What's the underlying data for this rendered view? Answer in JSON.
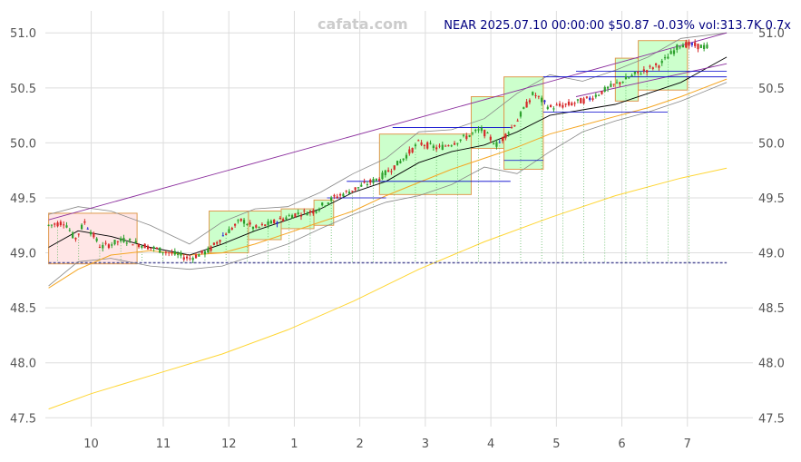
{
  "watermark": "cafata.com",
  "header": {
    "title": "NEAR 2025.07.10 00:00:00 $50.87 -0.03% vol:313.7K 0.7x"
  },
  "colors": {
    "up": "#2ca02c",
    "down": "#d62728",
    "special": "#2b2bd6",
    "ma_short": "#000000",
    "ma_mid": "#f5a623",
    "ma_long": "#ffd633",
    "bollinger": "#888888",
    "channel": "#8b2f9e",
    "box_up_fill": "#ccffcc",
    "box_down_fill": "#ffe6e6",
    "box_border": "#e09a50",
    "level_line": "#0000cc"
  },
  "chart_data": {
    "type": "candlestick",
    "title": "NEAR 2025.07.10 00:00:00 $50.87 -0.03% vol:313.7K 0.7x",
    "x_ticks": [
      "10",
      "11",
      "12",
      "1",
      "2",
      "3",
      "4",
      "5",
      "6",
      "7"
    ],
    "x_tick_positions": [
      1.0,
      2.1,
      3.1,
      4.1,
      5.1,
      6.1,
      7.1,
      8.1,
      9.1,
      10.1
    ],
    "x_range": [
      0.3,
      11.1
    ],
    "y_ticks": [
      47.5,
      48.0,
      48.5,
      49.0,
      49.5,
      50.0,
      50.5,
      51.0
    ],
    "y_tick_labels": [
      "47.5",
      "48.0",
      "48.5",
      "49.0",
      "49.5",
      "50.0",
      "50.5",
      "51.0"
    ],
    "ylim": [
      47.42,
      51.2
    ],
    "grid": true,
    "candles_anchor": [
      [
        0.35,
        49.25
      ],
      [
        0.6,
        49.28
      ],
      [
        0.75,
        49.12
      ],
      [
        0.9,
        49.28
      ],
      [
        1.15,
        49.05
      ],
      [
        1.5,
        49.12
      ],
      [
        1.9,
        49.05
      ],
      [
        2.2,
        49.0
      ],
      [
        2.5,
        48.95
      ],
      [
        2.8,
        49.02
      ],
      [
        3.0,
        49.15
      ],
      [
        3.3,
        49.3
      ],
      [
        3.5,
        49.22
      ],
      [
        3.8,
        49.28
      ],
      [
        4.1,
        49.35
      ],
      [
        4.4,
        49.38
      ],
      [
        4.7,
        49.5
      ],
      [
        5.1,
        49.6
      ],
      [
        5.4,
        49.68
      ],
      [
        5.7,
        49.82
      ],
      [
        6.0,
        50.0
      ],
      [
        6.3,
        49.95
      ],
      [
        6.6,
        50.02
      ],
      [
        6.95,
        50.12
      ],
      [
        7.2,
        49.98
      ],
      [
        7.5,
        50.2
      ],
      [
        7.75,
        50.45
      ],
      [
        8.0,
        50.32
      ],
      [
        8.3,
        50.35
      ],
      [
        8.6,
        50.4
      ],
      [
        8.9,
        50.5
      ],
      [
        9.3,
        50.62
      ],
      [
        9.7,
        50.72
      ],
      [
        10.0,
        50.9
      ],
      [
        10.4,
        50.87
      ]
    ],
    "boxes": [
      {
        "x0": 0.35,
        "x1": 1.7,
        "y0": 48.9,
        "y1": 49.36,
        "dir": "down"
      },
      {
        "x0": 2.8,
        "x1": 3.4,
        "y0": 49.0,
        "y1": 49.38,
        "dir": "up"
      },
      {
        "x0": 3.4,
        "x1": 3.9,
        "y0": 49.12,
        "y1": 49.38,
        "dir": "up"
      },
      {
        "x0": 3.9,
        "x1": 4.4,
        "y0": 49.22,
        "y1": 49.4,
        "dir": "up"
      },
      {
        "x0": 4.4,
        "x1": 4.7,
        "y0": 49.25,
        "y1": 49.48,
        "dir": "up"
      },
      {
        "x0": 5.4,
        "x1": 6.8,
        "y0": 49.53,
        "y1": 50.08,
        "dir": "up"
      },
      {
        "x0": 6.8,
        "x1": 7.3,
        "y0": 49.95,
        "y1": 50.42,
        "dir": "up"
      },
      {
        "x0": 7.3,
        "x1": 7.9,
        "y0": 49.76,
        "y1": 50.6,
        "dir": "up"
      },
      {
        "x0": 9.0,
        "x1": 9.35,
        "y0": 50.38,
        "y1": 50.77,
        "dir": "up"
      },
      {
        "x0": 9.35,
        "x1": 10.1,
        "y0": 50.48,
        "y1": 50.93,
        "dir": "up"
      }
    ],
    "levels": [
      {
        "x0": 4.6,
        "x1": 5.5,
        "y": 49.5
      },
      {
        "x0": 4.9,
        "x1": 7.4,
        "y": 49.65
      },
      {
        "x0": 5.6,
        "x1": 7.4,
        "y": 50.14
      },
      {
        "x0": 7.3,
        "x1": 7.9,
        "y": 49.84
      },
      {
        "x0": 7.9,
        "x1": 9.8,
        "y": 50.28
      },
      {
        "x0": 7.9,
        "x1": 10.7,
        "y": 50.6
      },
      {
        "x0": 8.4,
        "x1": 10.7,
        "y": 50.65
      }
    ],
    "baseline": 48.91,
    "channel_upper": [
      [
        0.35,
        49.3
      ],
      [
        10.7,
        51.0
      ]
    ],
    "channel_lower": [
      [
        8.4,
        50.42
      ],
      [
        10.7,
        50.72
      ]
    ],
    "ma_short": [
      [
        0.35,
        49.05
      ],
      [
        0.8,
        49.2
      ],
      [
        1.3,
        49.15
      ],
      [
        1.9,
        49.05
      ],
      [
        2.5,
        48.98
      ],
      [
        3.0,
        49.08
      ],
      [
        3.5,
        49.2
      ],
      [
        4.0,
        49.3
      ],
      [
        4.5,
        49.4
      ],
      [
        5.0,
        49.55
      ],
      [
        5.5,
        49.65
      ],
      [
        6.0,
        49.82
      ],
      [
        6.5,
        49.92
      ],
      [
        7.0,
        49.98
      ],
      [
        7.5,
        50.1
      ],
      [
        8.0,
        50.25
      ],
      [
        8.5,
        50.3
      ],
      [
        9.0,
        50.35
      ],
      [
        9.5,
        50.45
      ],
      [
        10.0,
        50.55
      ],
      [
        10.7,
        50.78
      ]
    ],
    "ma_mid": [
      [
        0.35,
        48.68
      ],
      [
        0.8,
        48.85
      ],
      [
        1.3,
        48.98
      ],
      [
        1.9,
        49.02
      ],
      [
        2.5,
        48.98
      ],
      [
        3.0,
        49.0
      ],
      [
        3.5,
        49.08
      ],
      [
        4.0,
        49.18
      ],
      [
        4.5,
        49.28
      ],
      [
        5.0,
        49.38
      ],
      [
        5.5,
        49.52
      ],
      [
        6.0,
        49.64
      ],
      [
        6.5,
        49.76
      ],
      [
        7.0,
        49.86
      ],
      [
        7.5,
        49.96
      ],
      [
        8.0,
        50.08
      ],
      [
        8.5,
        50.16
      ],
      [
        9.0,
        50.24
      ],
      [
        9.5,
        50.32
      ],
      [
        10.0,
        50.42
      ],
      [
        10.7,
        50.58
      ]
    ],
    "ma_long": [
      [
        0.35,
        47.58
      ],
      [
        1.0,
        47.72
      ],
      [
        2.0,
        47.9
      ],
      [
        3.0,
        48.08
      ],
      [
        4.0,
        48.3
      ],
      [
        5.0,
        48.56
      ],
      [
        6.0,
        48.85
      ],
      [
        7.0,
        49.1
      ],
      [
        8.0,
        49.32
      ],
      [
        9.0,
        49.52
      ],
      [
        10.0,
        49.68
      ],
      [
        10.7,
        49.77
      ]
    ],
    "bb_upper": [
      [
        0.35,
        49.35
      ],
      [
        0.8,
        49.42
      ],
      [
        1.3,
        49.38
      ],
      [
        1.9,
        49.25
      ],
      [
        2.5,
        49.08
      ],
      [
        3.0,
        49.28
      ],
      [
        3.5,
        49.4
      ],
      [
        4.0,
        49.42
      ],
      [
        4.5,
        49.55
      ],
      [
        5.0,
        49.72
      ],
      [
        5.5,
        49.86
      ],
      [
        6.0,
        50.1
      ],
      [
        6.5,
        50.12
      ],
      [
        7.0,
        50.22
      ],
      [
        7.5,
        50.45
      ],
      [
        8.0,
        50.62
      ],
      [
        8.5,
        50.56
      ],
      [
        9.0,
        50.66
      ],
      [
        9.5,
        50.78
      ],
      [
        10.0,
        50.95
      ],
      [
        10.7,
        51.0
      ]
    ],
    "bb_lower": [
      [
        0.35,
        48.7
      ],
      [
        0.8,
        48.92
      ],
      [
        1.3,
        48.95
      ],
      [
        1.9,
        48.88
      ],
      [
        2.5,
        48.85
      ],
      [
        3.0,
        48.88
      ],
      [
        3.5,
        48.98
      ],
      [
        4.0,
        49.08
      ],
      [
        4.5,
        49.22
      ],
      [
        5.0,
        49.35
      ],
      [
        5.5,
        49.46
      ],
      [
        6.0,
        49.52
      ],
      [
        6.5,
        49.62
      ],
      [
        7.0,
        49.78
      ],
      [
        7.5,
        49.72
      ],
      [
        8.0,
        49.92
      ],
      [
        8.5,
        50.1
      ],
      [
        9.0,
        50.2
      ],
      [
        9.5,
        50.28
      ],
      [
        10.0,
        50.38
      ],
      [
        10.7,
        50.55
      ]
    ]
  }
}
